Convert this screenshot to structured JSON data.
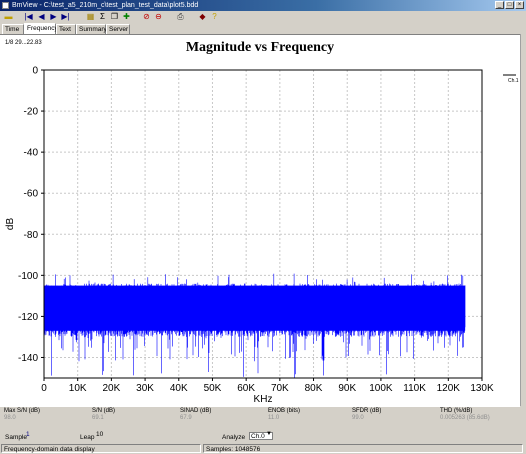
{
  "window": {
    "title": "BmView - C:\\test_a5_210m_c\\test_plan_test_data\\plot5.bdd",
    "minimize": "_",
    "maximize": "□",
    "close": "×"
  },
  "toolbar": {
    "icons": [
      "open-file-icon",
      "first-icon",
      "prev-icon",
      "next-icon",
      "last-icon",
      "export-icon",
      "sum-icon",
      "copy-icon",
      "fit-icon",
      "stop-icon",
      "minus-icon",
      "print-icon",
      "book-icon",
      "help-icon"
    ]
  },
  "tabs": [
    "Time",
    "Frequency",
    "Text",
    "Summary",
    "Server"
  ],
  "active_tab": "Frequency",
  "corner_label": "1/8 29...22.83",
  "channel_label": "Ch.1",
  "chart_data": {
    "type": "line",
    "title": "Magnitude vs Frequency",
    "xlabel": "KHz",
    "ylabel": "dB",
    "xlim": [
      0,
      130
    ],
    "ylim": [
      -150,
      0
    ],
    "x_ticks": [
      "0",
      "10K",
      "20K",
      "30K",
      "40K",
      "50K",
      "60K",
      "70K",
      "80K",
      "90K",
      "100K",
      "110K",
      "120K",
      "130K"
    ],
    "y_ticks": [
      "0",
      "-20",
      "-40",
      "-60",
      "-80",
      "-100",
      "-120",
      "-140"
    ],
    "grid": true,
    "series": [
      {
        "x_range": [
          0,
          125
        ],
        "noise_floor_upper": -106,
        "noise_floor_lower": -125,
        "min_spikes": -150,
        "color": "#0000ff"
      }
    ]
  },
  "stats": [
    {
      "label": "Max S/N (dB)",
      "value": "98.0"
    },
    {
      "label": "S/N (dB)",
      "value": "69.1"
    },
    {
      "label": "SINAD (dB)",
      "value": "67.9"
    },
    {
      "label": "ENOB (bits)",
      "value": "11.0"
    },
    {
      "label": "SFDR (dB)",
      "value": "99.0"
    },
    {
      "label": "THD (%/dB)",
      "value": "0.005263 (85.6dB)"
    }
  ],
  "controls": {
    "sample_label": "Sample",
    "sample_value": "1",
    "leap_label": "Leap",
    "leap_value": "10",
    "analyze_label": "Analyze",
    "analyze_value": "Ch.0"
  },
  "status": {
    "left": "Frequency-domain data display",
    "right": "Samples: 1048576"
  }
}
